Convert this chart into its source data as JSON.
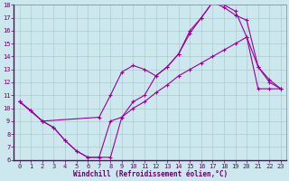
{
  "xlabel": "Windchill (Refroidissement éolien,°C)",
  "bg_color": "#cce8ee",
  "grid_color": "#aacccc",
  "line_color": "#990099",
  "xlim": [
    -0.5,
    23.5
  ],
  "ylim": [
    6,
    18
  ],
  "yticks": [
    6,
    7,
    8,
    9,
    10,
    11,
    12,
    13,
    14,
    15,
    16,
    17,
    18
  ],
  "xticks": [
    0,
    1,
    2,
    3,
    4,
    5,
    6,
    7,
    8,
    9,
    10,
    11,
    12,
    13,
    14,
    15,
    16,
    17,
    18,
    19,
    20,
    21,
    22,
    23
  ],
  "line1_x": [
    0,
    1,
    2,
    3,
    4,
    5,
    6,
    7,
    8,
    9,
    10,
    11,
    12,
    13,
    14,
    15,
    16,
    17,
    18,
    19,
    20,
    21,
    22,
    23
  ],
  "line1_y": [
    10.5,
    9.8,
    9.0,
    8.5,
    7.5,
    6.7,
    6.2,
    6.2,
    6.2,
    9.3,
    10.5,
    11.0,
    12.5,
    13.2,
    14.2,
    16.0,
    17.0,
    18.2,
    18.0,
    17.5,
    15.5,
    13.2,
    12.0,
    11.5
  ],
  "line2_x": [
    0,
    2,
    7,
    8,
    9,
    10,
    11,
    12,
    13,
    14,
    15,
    16,
    17,
    18,
    19,
    20,
    21,
    22,
    23
  ],
  "line2_y": [
    10.5,
    9.0,
    9.3,
    11.0,
    12.8,
    13.3,
    13.0,
    12.5,
    13.2,
    14.2,
    15.8,
    17.0,
    18.2,
    17.8,
    17.2,
    16.8,
    13.2,
    12.2,
    11.5
  ],
  "line3_x": [
    0,
    1,
    2,
    3,
    4,
    5,
    6,
    7,
    8,
    9,
    10,
    11,
    12,
    13,
    14,
    15,
    16,
    17,
    18,
    19,
    20,
    21,
    22,
    23
  ],
  "line3_y": [
    10.5,
    9.8,
    9.0,
    8.5,
    7.5,
    6.7,
    6.2,
    6.2,
    9.0,
    9.3,
    10.0,
    10.5,
    11.2,
    11.8,
    12.5,
    13.0,
    13.5,
    14.0,
    14.5,
    15.0,
    15.5,
    11.5,
    11.5,
    11.5
  ]
}
